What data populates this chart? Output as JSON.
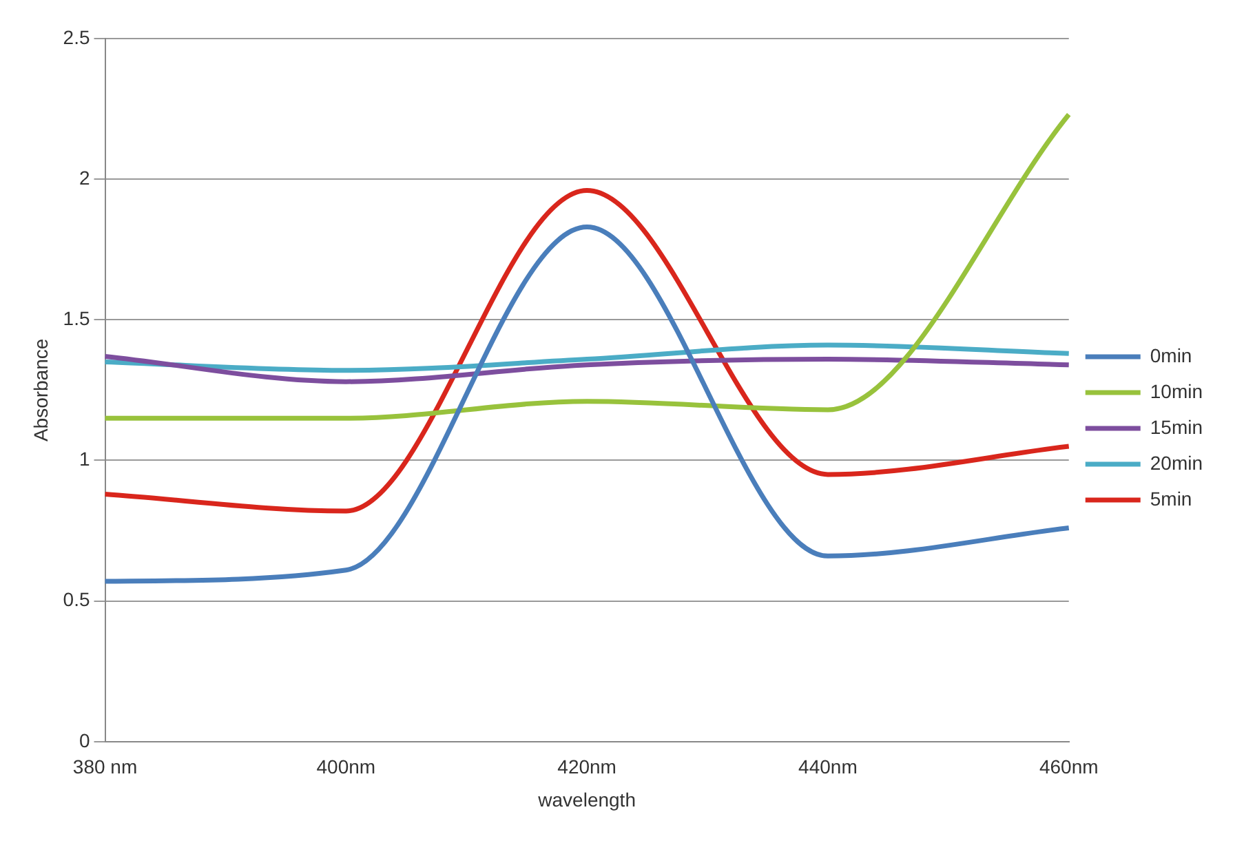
{
  "chart_data": {
    "type": "line",
    "xlabel": "wavelength",
    "ylabel": "Absorbance",
    "categories": [
      "380 nm",
      "400nm",
      "420nm",
      "440nm",
      "460nm"
    ],
    "series": [
      {
        "name": "0min",
        "color": "#4a7ebb",
        "values": [
          0.57,
          0.61,
          1.83,
          0.66,
          0.76
        ]
      },
      {
        "name": "10min",
        "color": "#98c23c",
        "values": [
          1.15,
          1.15,
          1.21,
          1.18,
          2.23
        ]
      },
      {
        "name": "15min",
        "color": "#7d4e9e",
        "values": [
          1.37,
          1.28,
          1.34,
          1.36,
          1.34
        ]
      },
      {
        "name": "20min",
        "color": "#4bacc6",
        "values": [
          1.35,
          1.32,
          1.36,
          1.41,
          1.38
        ]
      },
      {
        "name": "5min",
        "color": "#d9261c",
        "values": [
          0.88,
          0.82,
          1.96,
          0.95,
          1.05
        ]
      }
    ],
    "ylim": [
      0,
      2.5
    ],
    "yticks": [
      0,
      0.5,
      1,
      1.5,
      2,
      2.5
    ],
    "grid": "y",
    "legend": "right",
    "marker": "none"
  }
}
